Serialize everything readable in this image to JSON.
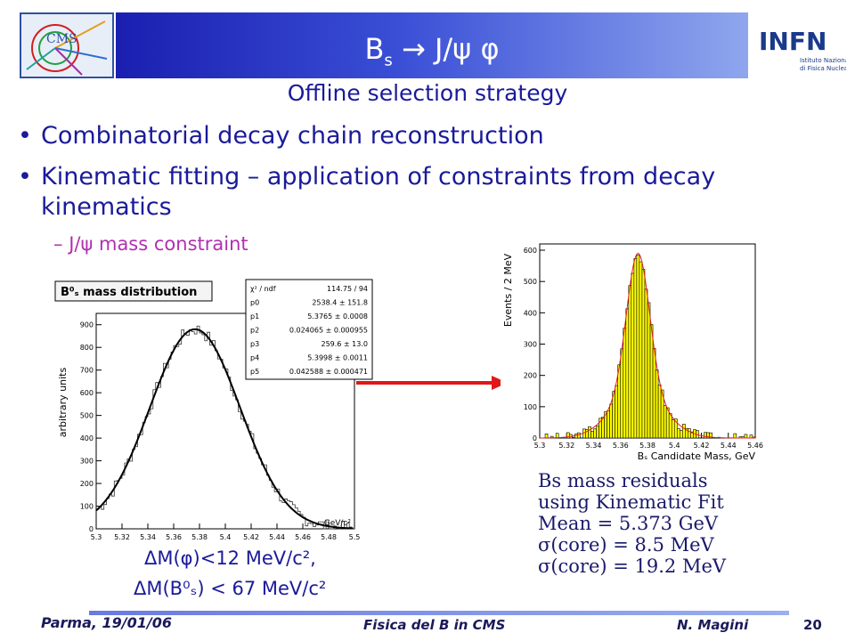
{
  "slide": {
    "title_main": "B",
    "title_sub": "s",
    "title_rest": " → J/ψ φ",
    "subtitle": "Offline selection strategy",
    "bullets": [
      "Combinatorial decay chain reconstruction",
      "Kinematic fitting – application of constraints from decay kinematics"
    ],
    "sub_bullet": "J/ψ mass constraint",
    "cuts": [
      "ΔM(φ)<12 MeV/c², ",
      "ΔM(B⁰ₛ) < 67 MeV/c²"
    ],
    "residuals": [
      "Bs mass residuals",
      "using Kinematic Fit",
      "Mean = 5.373 GeV",
      "σ(core) = 8.5 MeV",
      "σ(core) = 19.2 MeV"
    ],
    "logos": {
      "left": "CMS",
      "right_name": "INFN",
      "right_text_1": "Istituto Nazionale",
      "right_text_2": "di Fisica Nucleare"
    },
    "footer": {
      "left": "Parma, 19/01/06",
      "center": "Fisica del B in CMS",
      "right": "N. Magini",
      "page": "20"
    }
  },
  "chart_data": [
    {
      "type": "line",
      "title": "B⁰ₛ mass distribution",
      "ylabel": "arbitrary units",
      "xlabel": "GeV/c²",
      "xlim": [
        5.3,
        5.5
      ],
      "ylim": [
        0,
        950
      ],
      "x_ticks": [
        5.3,
        5.32,
        5.34,
        5.36,
        5.38,
        5.4,
        5.42,
        5.44,
        5.46,
        5.48,
        5.5
      ],
      "y_ticks": [
        0,
        100,
        200,
        300,
        400,
        500,
        600,
        700,
        800,
        900
      ],
      "fit": {
        "mean": 5.3765,
        "peak": 880,
        "sigma": 0.035
      },
      "stats": [
        [
          "χ² / ndf",
          "114.75 / 94"
        ],
        [
          "p0",
          "2538.4 ± 151.8"
        ],
        [
          "p1",
          "5.3765 ± 0.0008"
        ],
        [
          "p2",
          "0.024065 ± 0.000955"
        ],
        [
          "p3",
          "259.6 ± 13.0"
        ],
        [
          "p4",
          "5.3998 ± 0.0011"
        ],
        [
          "p5",
          "0.042588 ± 0.000471"
        ]
      ]
    },
    {
      "type": "bar",
      "xlabel": "Bₛ Candidate Mass, GeV",
      "ylabel": "Events / 2 MeV",
      "xlim": [
        5.3,
        5.46
      ],
      "ylim": [
        0,
        620
      ],
      "x_ticks": [
        5.3,
        5.32,
        5.34,
        5.36,
        5.38,
        5.4,
        5.42,
        5.44,
        5.46
      ],
      "y_ticks": [
        0,
        100,
        200,
        300,
        400,
        500,
        600
      ],
      "fit": {
        "mean": 5.373,
        "peak": 590,
        "sigma_core": 0.0085,
        "sigma_tail": 0.0192
      }
    }
  ]
}
